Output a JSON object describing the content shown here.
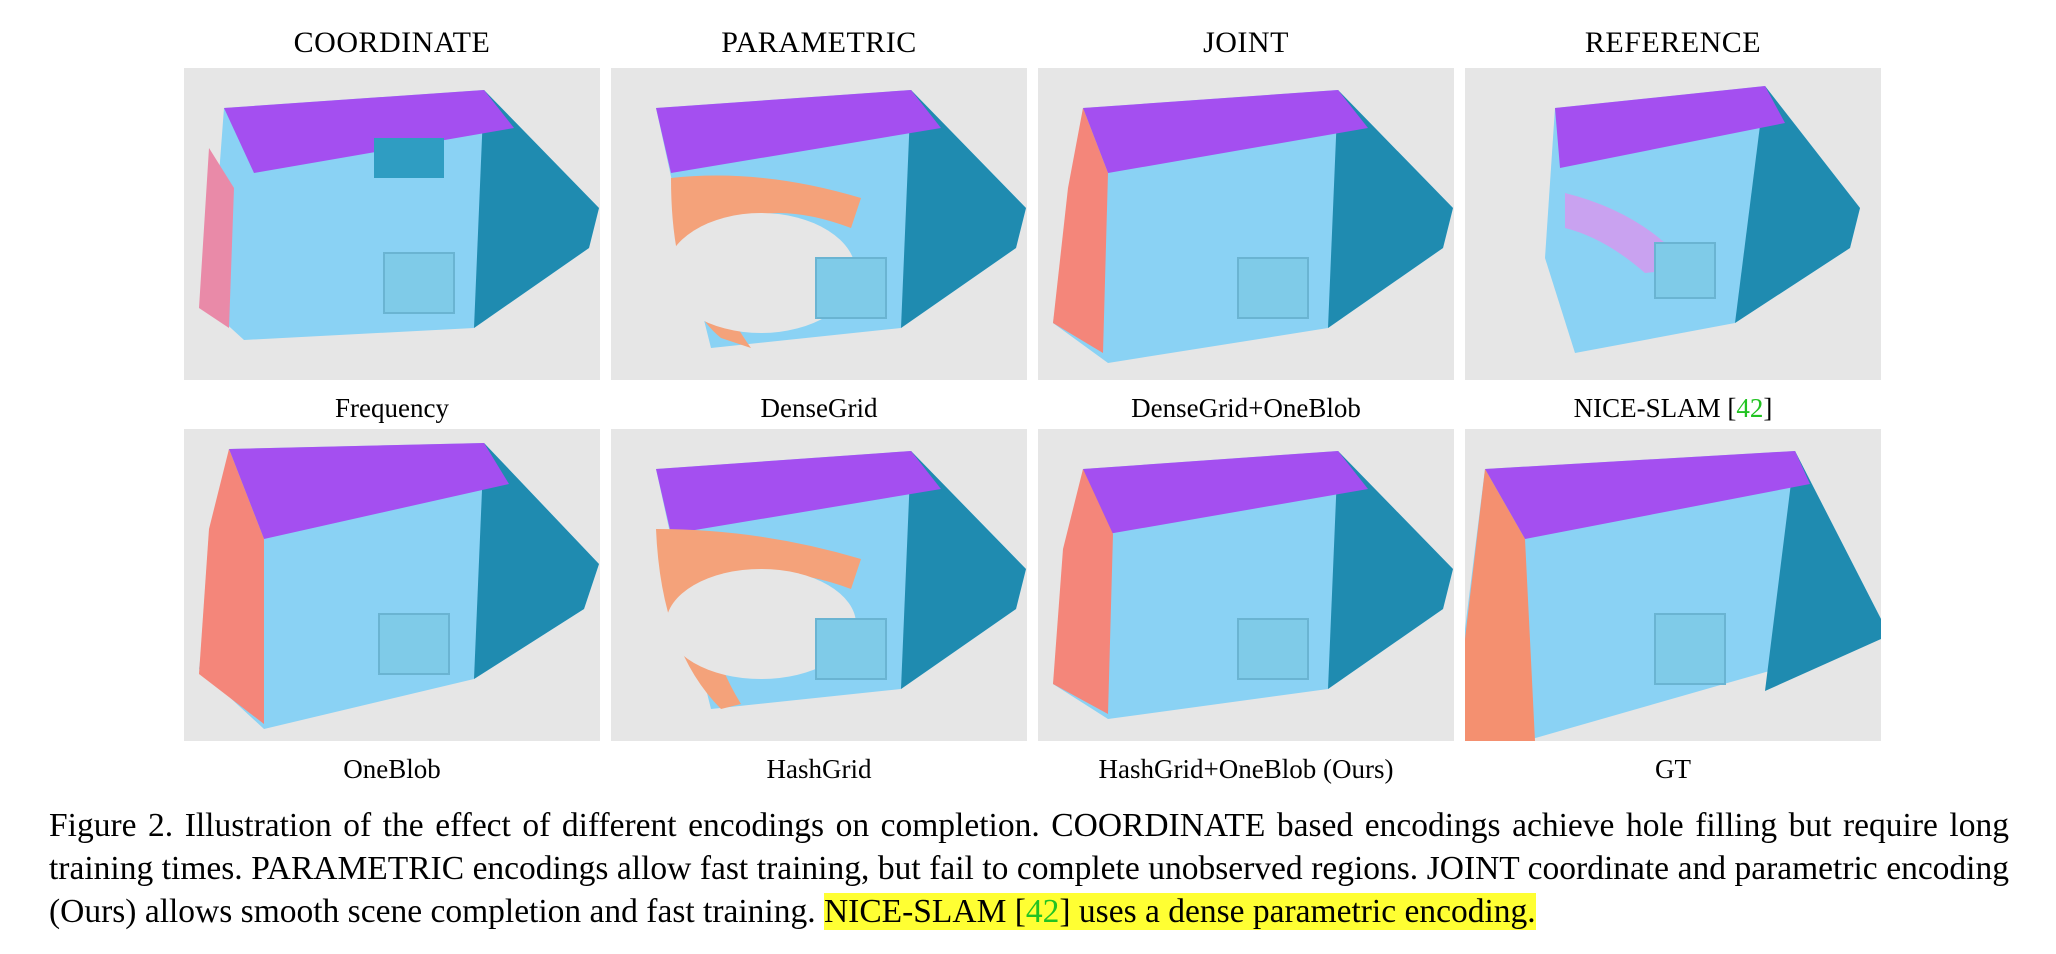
{
  "columns": [
    "COORDINATE",
    "PARAMETRIC",
    "JOINT",
    "REFERENCE"
  ],
  "row1_labels": [
    "Frequency",
    "DenseGrid",
    "DenseGrid+OneBlob"
  ],
  "row1_ref": {
    "name": "NICE-SLAM",
    "open": " [",
    "cite": "42",
    "close": "]"
  },
  "row2_labels": [
    "OneBlob",
    "HashGrid",
    "HashGrid+OneBlob (Ours)",
    "GT"
  ],
  "figure_caption": {
    "main": "Figure 2.  Illustration of the effect of different encodings on completion.  COORDINATE based encodings achieve hole filling but require long training times. PARAMETRIC encodings allow fast training, but fail to complete unobserved regions. JOINT coordinate and parametric encoding (Ours) allows smooth scene completion and fast training. ",
    "highlight_pre": "NICE-SLAM [",
    "highlight_cite": "42",
    "highlight_post": "] uses a dense parametric encoding."
  },
  "colors": {
    "background": "#ffffff",
    "panel_bg": "#e6e6e6",
    "wall": "#a44ff0",
    "floor": "#8ad2f4",
    "side": "#1f8bb0",
    "left_edge": "#f4867a",
    "citation": "#22c322",
    "highlight": "#ffff33"
  }
}
